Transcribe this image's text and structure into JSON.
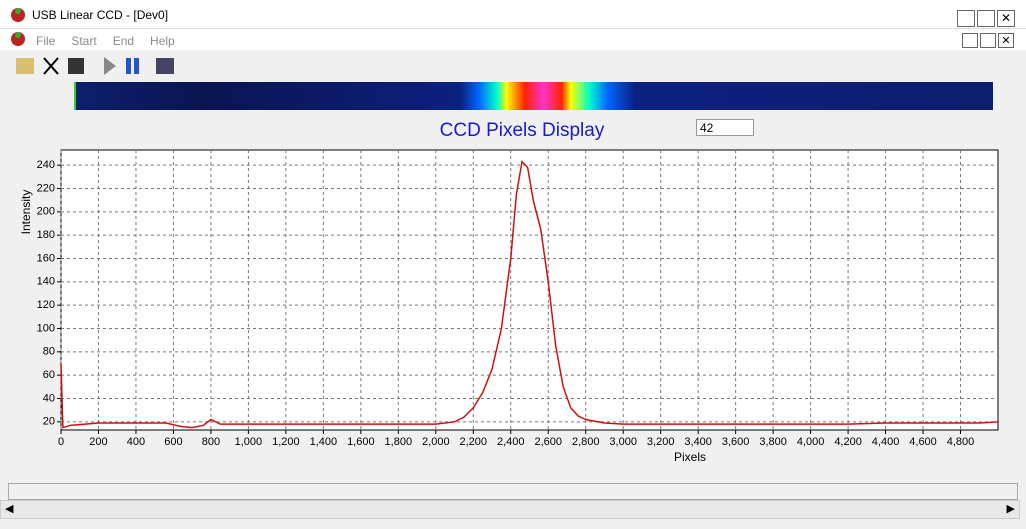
{
  "window": {
    "title": "USB Linear CCD - [Dev0]"
  },
  "menu": [
    "File",
    "Start",
    "End",
    "Help"
  ],
  "input_value": "42",
  "chart_data": {
    "type": "line",
    "title": "CCD Pixels Display",
    "x_label": "Pixels",
    "y_label": "Intensity",
    "color": "#cc1111",
    "grid": true,
    "xlim": [
      0,
      5000
    ],
    "ylim": [
      13,
      253
    ],
    "xticks": [
      0,
      200,
      400,
      600,
      800,
      {
        "value": 1000,
        "label": "1,000"
      },
      {
        "value": 1200,
        "label": "1,200"
      },
      {
        "value": 1400,
        "label": "1,400"
      },
      {
        "value": 1600,
        "label": "1,600"
      },
      {
        "value": 1800,
        "label": "1,800"
      },
      {
        "value": 2000,
        "label": "2,000"
      },
      {
        "value": 2200,
        "label": "2,200"
      },
      {
        "value": 2400,
        "label": "2,400"
      },
      {
        "value": 2600,
        "label": "2,600"
      },
      {
        "value": 2800,
        "label": "2,800"
      },
      {
        "value": 3000,
        "label": "3,000"
      },
      {
        "value": 3200,
        "label": "3,200"
      },
      {
        "value": 3400,
        "label": "3,400"
      },
      {
        "value": 3600,
        "label": "3,600"
      },
      {
        "value": 3800,
        "label": "3,800"
      },
      {
        "value": 4000,
        "label": "4,000"
      },
      {
        "value": 4200,
        "label": "4,200"
      },
      {
        "value": 4400,
        "label": "4,400"
      },
      {
        "value": 4600,
        "label": "4,600"
      },
      {
        "value": 4800,
        "label": "4,800"
      }
    ],
    "yticks": [
      20,
      40,
      60,
      80,
      100,
      120,
      140,
      160,
      180,
      200,
      220,
      240
    ],
    "x": [
      0,
      10,
      50,
      200,
      400,
      560,
      640,
      700,
      760,
      800,
      850,
      1000,
      1200,
      1400,
      1600,
      1800,
      2000,
      2100,
      2150,
      2200,
      2250,
      2300,
      2350,
      2400,
      2430,
      2460,
      2490,
      2520,
      2560,
      2600,
      2640,
      2680,
      2720,
      2760,
      2800,
      2900,
      3000,
      3200,
      3400,
      3600,
      3800,
      4000,
      4200,
      4400,
      4600,
      4800,
      4900,
      5000
    ],
    "values": [
      70,
      15,
      17,
      19,
      19,
      19,
      16,
      15,
      17,
      22,
      18,
      18,
      18,
      18,
      18,
      18,
      18,
      20,
      24,
      32,
      45,
      65,
      100,
      160,
      215,
      243,
      238,
      210,
      185,
      140,
      85,
      50,
      32,
      25,
      22,
      19,
      18,
      18,
      18,
      18,
      18,
      18,
      18,
      19,
      19,
      19,
      19,
      20
    ]
  }
}
